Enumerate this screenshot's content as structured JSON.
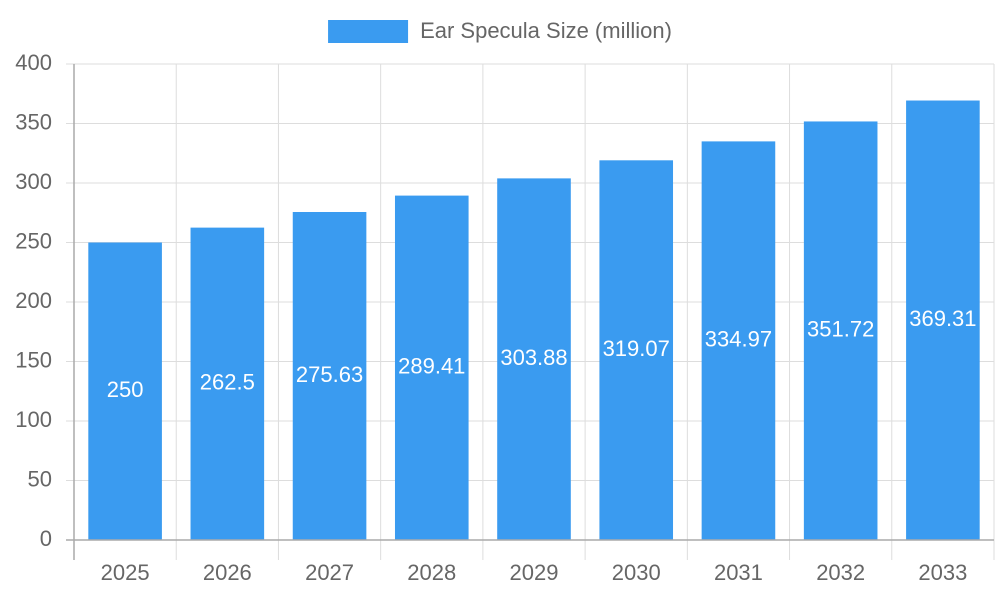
{
  "chart_data": {
    "type": "bar",
    "categories": [
      "2025",
      "2026",
      "2027",
      "2028",
      "2029",
      "2030",
      "2031",
      "2032",
      "2033"
    ],
    "series": [
      {
        "name": "Ear Specula Size (million)",
        "color": "#3a9bf0",
        "values": [
          250,
          262.5,
          275.63,
          289.41,
          303.88,
          319.07,
          334.97,
          351.72,
          369.31
        ]
      }
    ],
    "ylim": [
      0,
      400
    ],
    "yticks": [
      0,
      50,
      100,
      150,
      200,
      250,
      300,
      350,
      400
    ],
    "grid": true,
    "legend": "top"
  }
}
